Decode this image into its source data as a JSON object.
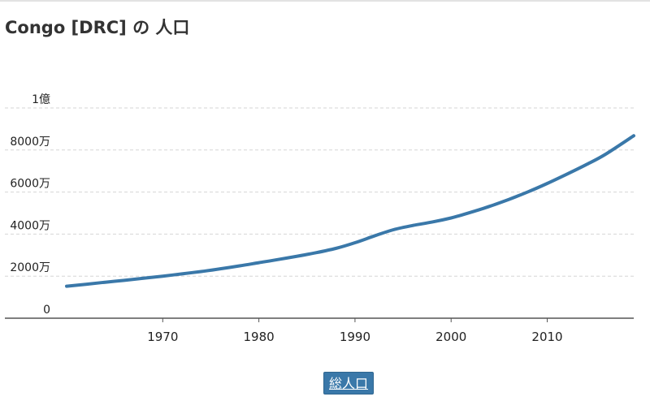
{
  "title": "Congo [DRC] の 人口",
  "legend": {
    "label": "総人口"
  },
  "colors": {
    "series": "#3a78a9",
    "grid": "#d6d6d6",
    "axis": "#555555"
  },
  "chart_data": {
    "type": "line",
    "title": "Congo [DRC] の 人口",
    "xlabel": "",
    "ylabel": "",
    "xlim": [
      1960,
      2019
    ],
    "ylim": [
      0,
      100000000
    ],
    "grid": true,
    "legend_position": "bottom-center",
    "x_ticks": [
      {
        "value": 1970,
        "label": "1970"
      },
      {
        "value": 1980,
        "label": "1980"
      },
      {
        "value": 1990,
        "label": "1990"
      },
      {
        "value": 2000,
        "label": "2000"
      },
      {
        "value": 2010,
        "label": "2010"
      }
    ],
    "y_ticks": [
      {
        "value": 0,
        "label": "0"
      },
      {
        "value": 20000000,
        "label": "2000万"
      },
      {
        "value": 40000000,
        "label": "4000万"
      },
      {
        "value": 60000000,
        "label": "6000万"
      },
      {
        "value": 80000000,
        "label": "8000万"
      },
      {
        "value": 100000000,
        "label": "1億"
      }
    ],
    "series": [
      {
        "name": "総人口",
        "x": [
          1960,
          1962,
          1964,
          1966,
          1968,
          1970,
          1972,
          1974,
          1976,
          1978,
          1980,
          1982,
          1984,
          1986,
          1988,
          1990,
          1992,
          1994,
          1996,
          1998,
          2000,
          2002,
          2004,
          2006,
          2008,
          2010,
          2012,
          2014,
          2016,
          2019
        ],
        "y": [
          15200000,
          16100000,
          17100000,
          18000000,
          19000000,
          20000000,
          21100000,
          22200000,
          23500000,
          24900000,
          26400000,
          27900000,
          29500000,
          31200000,
          33200000,
          35900000,
          39100000,
          42100000,
          44100000,
          45700000,
          47700000,
          50300000,
          53200000,
          56500000,
          60100000,
          64100000,
          68400000,
          72900000,
          77800000,
          86800000
        ]
      }
    ]
  }
}
